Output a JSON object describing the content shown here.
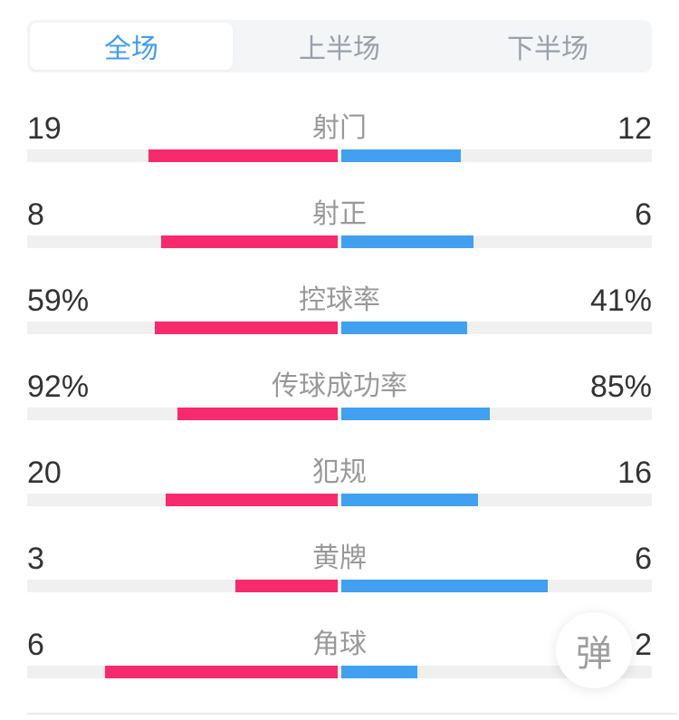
{
  "tabs": {
    "items": [
      {
        "label": "全场",
        "selected": true
      },
      {
        "label": "上半场",
        "selected": false
      },
      {
        "label": "下半场",
        "selected": false
      }
    ]
  },
  "stats": [
    {
      "label": "射门",
      "home": "19",
      "away": "12",
      "home_value": 19,
      "away_value": 12
    },
    {
      "label": "射正",
      "home": "8",
      "away": "6",
      "home_value": 8,
      "away_value": 6
    },
    {
      "label": "控球率",
      "home": "59%",
      "away": "41%",
      "home_value": 59,
      "away_value": 41
    },
    {
      "label": "传球成功率",
      "home": "92%",
      "away": "85%",
      "home_value": 92,
      "away_value": 85
    },
    {
      "label": "犯规",
      "home": "20",
      "away": "16",
      "home_value": 20,
      "away_value": 16
    },
    {
      "label": "黄牌",
      "home": "3",
      "away": "6",
      "home_value": 3,
      "away_value": 6
    },
    {
      "label": "角球",
      "home": "6",
      "away": "2",
      "home_value": 6,
      "away_value": 2
    }
  ],
  "colors": {
    "home_bar": "#f72a6e",
    "away_bar": "#41a0f0",
    "bar_track": "#f0f0f0",
    "tab_selected_text": "#3f9df0",
    "tab_text": "#99a0aa",
    "value_text": "#333333",
    "label_text": "#999999"
  },
  "floating_button": {
    "label": "弹"
  }
}
